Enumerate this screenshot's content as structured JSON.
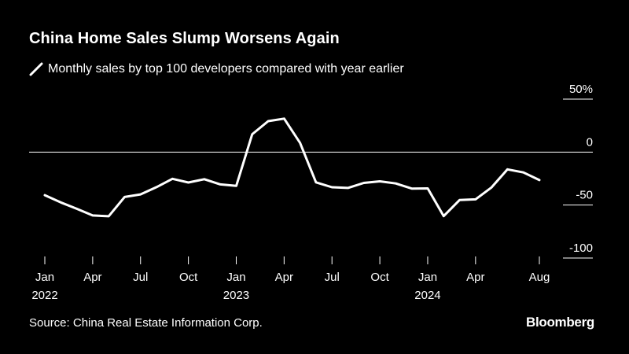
{
  "chart_data": {
    "type": "line",
    "title": "China Home Sales Slump Worsens Again",
    "legend": "Monthly sales by top 100 developers compared with year earlier",
    "ylabel": "",
    "xlabel": "",
    "ylim": [
      -100,
      50
    ],
    "y_ticks": [
      {
        "value": 50,
        "label": "50%"
      },
      {
        "value": 0,
        "label": "0"
      },
      {
        "value": -50,
        "label": "-50"
      },
      {
        "value": -100,
        "label": "-100"
      }
    ],
    "x_ticks": [
      {
        "index": 0,
        "label": "Jan",
        "year": "2022"
      },
      {
        "index": 3,
        "label": "Apr"
      },
      {
        "index": 6,
        "label": "Jul"
      },
      {
        "index": 9,
        "label": "Oct"
      },
      {
        "index": 12,
        "label": "Jan",
        "year": "2023"
      },
      {
        "index": 15,
        "label": "Apr"
      },
      {
        "index": 18,
        "label": "Jul"
      },
      {
        "index": 21,
        "label": "Oct"
      },
      {
        "index": 24,
        "label": "Jan",
        "year": "2024"
      },
      {
        "index": 27,
        "label": "Apr"
      },
      {
        "index": 31,
        "label": "Aug"
      }
    ],
    "series": [
      {
        "name": "Monthly sales by top 100 developers compared with year earlier",
        "color": "#ffffff",
        "values": [
          -40.7,
          -47.5,
          -53.5,
          -59.8,
          -60.6,
          -42.4,
          -39.9,
          -33.1,
          -25.2,
          -28.7,
          -25.6,
          -30.5,
          -31.9,
          16.9,
          29.2,
          31.6,
          8.7,
          -28.6,
          -33.2,
          -33.8,
          -29.1,
          -27.6,
          -29.6,
          -34.4,
          -34.3,
          -60.4,
          -45.3,
          -44.6,
          -33.4,
          -16.3,
          -19.2,
          -26.4
        ]
      }
    ]
  },
  "source": "Source: China Real Estate Information Corp.",
  "brand": "Bloomberg"
}
